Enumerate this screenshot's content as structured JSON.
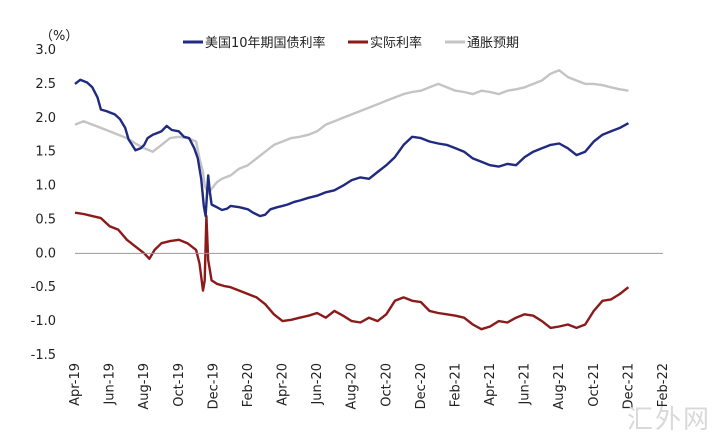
{
  "watermark": "汇外网",
  "chart_data": {
    "type": "line",
    "unit_label": "（%）",
    "ylim": [
      -1.5,
      3.0
    ],
    "yticks": [
      "3.0",
      "2.5",
      "2.0",
      "1.5",
      "1.0",
      "0.5",
      "0.0",
      "-0.5",
      "-1.0",
      "-1.5"
    ],
    "x_ticks": [
      "Apr-19",
      "Jun-19",
      "Aug-19",
      "Oct-19",
      "Dec-19",
      "Feb-20",
      "Apr-20",
      "Jun-20",
      "Aug-20",
      "Oct-20",
      "Dec-20",
      "Feb-21",
      "Apr-21",
      "Jun-21",
      "Aug-21",
      "Oct-21",
      "Dec-21",
      "Feb-22"
    ],
    "grid": false,
    "legend_position": "top",
    "series": [
      {
        "name": "美国10年期国债利率",
        "color": "#1f2a80",
        "points": [
          [
            0,
            2.5
          ],
          [
            0.3,
            2.56
          ],
          [
            0.7,
            2.52
          ],
          [
            1.0,
            2.45
          ],
          [
            1.3,
            2.3
          ],
          [
            1.5,
            2.12
          ],
          [
            1.8,
            2.1
          ],
          [
            2.0,
            2.08
          ],
          [
            2.3,
            2.05
          ],
          [
            2.6,
            1.98
          ],
          [
            2.9,
            1.85
          ],
          [
            3.1,
            1.68
          ],
          [
            3.3,
            1.6
          ],
          [
            3.5,
            1.52
          ],
          [
            3.8,
            1.55
          ],
          [
            4.0,
            1.6
          ],
          [
            4.2,
            1.7
          ],
          [
            4.5,
            1.75
          ],
          [
            4.8,
            1.78
          ],
          [
            5.0,
            1.8
          ],
          [
            5.3,
            1.88
          ],
          [
            5.6,
            1.82
          ],
          [
            6.0,
            1.8
          ],
          [
            6.3,
            1.72
          ],
          [
            6.6,
            1.7
          ],
          [
            6.9,
            1.55
          ],
          [
            7.1,
            1.4
          ],
          [
            7.3,
            1.1
          ],
          [
            7.45,
            0.7
          ],
          [
            7.55,
            0.55
          ],
          [
            7.7,
            1.15
          ],
          [
            7.8,
            0.9
          ],
          [
            7.9,
            0.72
          ],
          [
            8.2,
            0.68
          ],
          [
            8.5,
            0.64
          ],
          [
            8.8,
            0.66
          ],
          [
            9.0,
            0.7
          ],
          [
            9.5,
            0.68
          ],
          [
            10.0,
            0.65
          ],
          [
            10.3,
            0.6
          ],
          [
            10.7,
            0.55
          ],
          [
            11.0,
            0.57
          ],
          [
            11.3,
            0.65
          ],
          [
            11.7,
            0.68
          ],
          [
            12.0,
            0.7
          ],
          [
            12.3,
            0.72
          ],
          [
            12.7,
            0.76
          ],
          [
            13.0,
            0.78
          ],
          [
            13.5,
            0.82
          ],
          [
            14.0,
            0.85
          ],
          [
            14.5,
            0.9
          ],
          [
            15.0,
            0.93
          ],
          [
            15.5,
            1.0
          ],
          [
            16.0,
            1.08
          ],
          [
            16.5,
            1.12
          ],
          [
            17.0,
            1.1
          ],
          [
            17.5,
            1.2
          ],
          [
            18.0,
            1.3
          ],
          [
            18.5,
            1.42
          ],
          [
            19.0,
            1.6
          ],
          [
            19.5,
            1.72
          ],
          [
            20.0,
            1.7
          ],
          [
            20.5,
            1.65
          ],
          [
            21.0,
            1.62
          ],
          [
            21.5,
            1.6
          ],
          [
            22.0,
            1.55
          ],
          [
            22.5,
            1.5
          ],
          [
            23.0,
            1.4
          ],
          [
            23.5,
            1.35
          ],
          [
            24.0,
            1.3
          ],
          [
            24.5,
            1.28
          ],
          [
            25.0,
            1.32
          ],
          [
            25.5,
            1.3
          ],
          [
            26.0,
            1.42
          ],
          [
            26.5,
            1.5
          ],
          [
            27.0,
            1.55
          ],
          [
            27.5,
            1.6
          ],
          [
            28.0,
            1.62
          ],
          [
            28.5,
            1.55
          ],
          [
            29.0,
            1.45
          ],
          [
            29.5,
            1.5
          ],
          [
            30.0,
            1.65
          ],
          [
            30.5,
            1.75
          ],
          [
            31.0,
            1.8
          ],
          [
            31.5,
            1.85
          ],
          [
            32.0,
            1.92
          ]
        ]
      },
      {
        "name": "实际利率",
        "color": "#8b1a1a",
        "points": [
          [
            0,
            0.6
          ],
          [
            0.5,
            0.58
          ],
          [
            1.0,
            0.55
          ],
          [
            1.5,
            0.52
          ],
          [
            2.0,
            0.4
          ],
          [
            2.5,
            0.35
          ],
          [
            3.0,
            0.2
          ],
          [
            3.5,
            0.1
          ],
          [
            4.0,
            0.0
          ],
          [
            4.3,
            -0.08
          ],
          [
            4.6,
            0.05
          ],
          [
            5.0,
            0.15
          ],
          [
            5.5,
            0.18
          ],
          [
            6.0,
            0.2
          ],
          [
            6.5,
            0.15
          ],
          [
            7.0,
            0.05
          ],
          [
            7.2,
            -0.15
          ],
          [
            7.4,
            -0.55
          ],
          [
            7.5,
            -0.4
          ],
          [
            7.6,
            0.55
          ],
          [
            7.7,
            -0.1
          ],
          [
            7.9,
            -0.4
          ],
          [
            8.2,
            -0.45
          ],
          [
            8.6,
            -0.48
          ],
          [
            9.0,
            -0.5
          ],
          [
            9.5,
            -0.55
          ],
          [
            10.0,
            -0.6
          ],
          [
            10.5,
            -0.65
          ],
          [
            11.0,
            -0.75
          ],
          [
            11.5,
            -0.9
          ],
          [
            12.0,
            -1.0
          ],
          [
            12.5,
            -0.98
          ],
          [
            13.0,
            -0.95
          ],
          [
            13.5,
            -0.92
          ],
          [
            14.0,
            -0.88
          ],
          [
            14.5,
            -0.95
          ],
          [
            15.0,
            -0.85
          ],
          [
            15.5,
            -0.92
          ],
          [
            16.0,
            -1.0
          ],
          [
            16.5,
            -1.02
          ],
          [
            17.0,
            -0.95
          ],
          [
            17.5,
            -1.0
          ],
          [
            18.0,
            -0.9
          ],
          [
            18.5,
            -0.7
          ],
          [
            19.0,
            -0.65
          ],
          [
            19.5,
            -0.7
          ],
          [
            20.0,
            -0.72
          ],
          [
            20.5,
            -0.85
          ],
          [
            21.0,
            -0.88
          ],
          [
            21.5,
            -0.9
          ],
          [
            22.0,
            -0.92
          ],
          [
            22.5,
            -0.95
          ],
          [
            23.0,
            -1.05
          ],
          [
            23.5,
            -1.12
          ],
          [
            24.0,
            -1.08
          ],
          [
            24.5,
            -1.0
          ],
          [
            25.0,
            -1.02
          ],
          [
            25.5,
            -0.95
          ],
          [
            26.0,
            -0.9
          ],
          [
            26.5,
            -0.92
          ],
          [
            27.0,
            -1.0
          ],
          [
            27.5,
            -1.1
          ],
          [
            28.0,
            -1.08
          ],
          [
            28.5,
            -1.05
          ],
          [
            29.0,
            -1.1
          ],
          [
            29.5,
            -1.05
          ],
          [
            30.0,
            -0.85
          ],
          [
            30.5,
            -0.7
          ],
          [
            31.0,
            -0.68
          ],
          [
            31.5,
            -0.6
          ],
          [
            32.0,
            -0.5
          ]
        ]
      },
      {
        "name": "通胀预期",
        "color": "#c4c4c4",
        "points": [
          [
            0,
            1.9
          ],
          [
            0.5,
            1.95
          ],
          [
            1.0,
            1.9
          ],
          [
            1.5,
            1.85
          ],
          [
            2.0,
            1.8
          ],
          [
            2.5,
            1.75
          ],
          [
            3.0,
            1.7
          ],
          [
            3.5,
            1.62
          ],
          [
            4.0,
            1.55
          ],
          [
            4.5,
            1.5
          ],
          [
            5.0,
            1.6
          ],
          [
            5.5,
            1.7
          ],
          [
            6.0,
            1.72
          ],
          [
            6.5,
            1.7
          ],
          [
            7.0,
            1.65
          ],
          [
            7.2,
            1.4
          ],
          [
            7.4,
            1.2
          ],
          [
            7.5,
            1.0
          ],
          [
            7.7,
            0.88
          ],
          [
            7.9,
            0.95
          ],
          [
            8.2,
            1.05
          ],
          [
            8.5,
            1.1
          ],
          [
            9.0,
            1.15
          ],
          [
            9.5,
            1.25
          ],
          [
            10.0,
            1.3
          ],
          [
            10.5,
            1.4
          ],
          [
            11.0,
            1.5
          ],
          [
            11.5,
            1.6
          ],
          [
            12.0,
            1.65
          ],
          [
            12.5,
            1.7
          ],
          [
            13.0,
            1.72
          ],
          [
            13.5,
            1.75
          ],
          [
            14.0,
            1.8
          ],
          [
            14.5,
            1.9
          ],
          [
            15.0,
            1.95
          ],
          [
            15.5,
            2.0
          ],
          [
            16.0,
            2.05
          ],
          [
            16.5,
            2.1
          ],
          [
            17.0,
            2.15
          ],
          [
            17.5,
            2.2
          ],
          [
            18.0,
            2.25
          ],
          [
            18.5,
            2.3
          ],
          [
            19.0,
            2.35
          ],
          [
            19.5,
            2.38
          ],
          [
            20.0,
            2.4
          ],
          [
            20.5,
            2.45
          ],
          [
            21.0,
            2.5
          ],
          [
            21.5,
            2.45
          ],
          [
            22.0,
            2.4
          ],
          [
            22.5,
            2.38
          ],
          [
            23.0,
            2.35
          ],
          [
            23.5,
            2.4
          ],
          [
            24.0,
            2.38
          ],
          [
            24.5,
            2.35
          ],
          [
            25.0,
            2.4
          ],
          [
            25.5,
            2.42
          ],
          [
            26.0,
            2.45
          ],
          [
            26.5,
            2.5
          ],
          [
            27.0,
            2.55
          ],
          [
            27.5,
            2.65
          ],
          [
            28.0,
            2.7
          ],
          [
            28.5,
            2.6
          ],
          [
            29.0,
            2.55
          ],
          [
            29.5,
            2.5
          ],
          [
            30.0,
            2.5
          ],
          [
            30.5,
            2.48
          ],
          [
            31.0,
            2.45
          ],
          [
            31.5,
            2.42
          ],
          [
            32.0,
            2.4
          ]
        ]
      }
    ]
  }
}
